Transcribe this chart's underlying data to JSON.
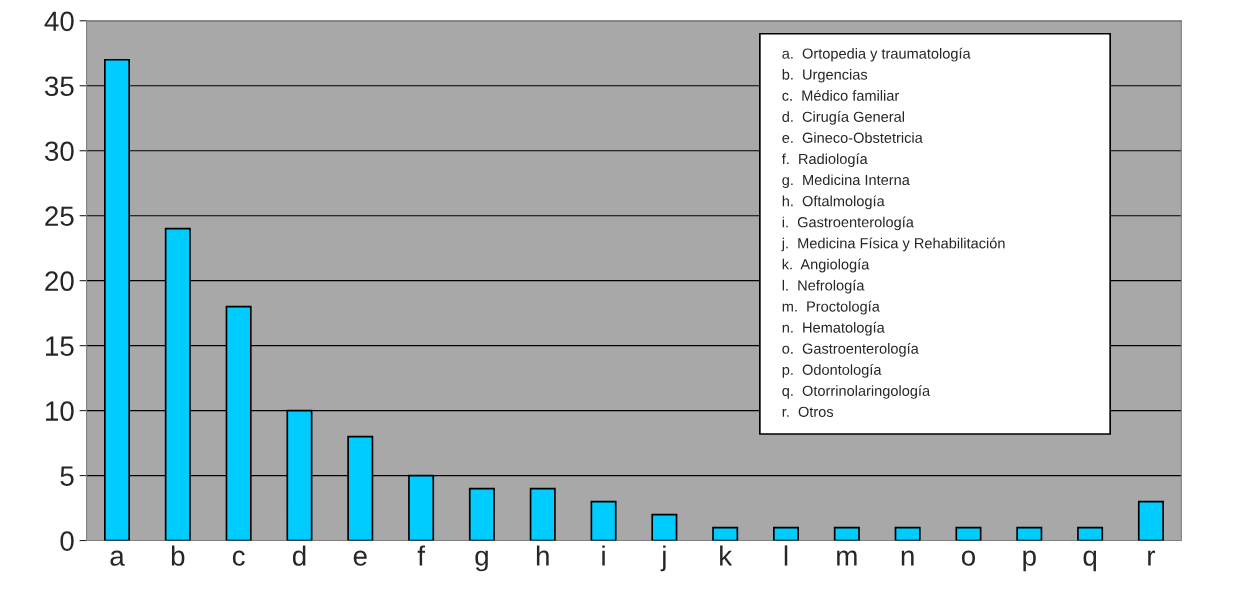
{
  "chart_data": {
    "type": "bar",
    "categories": [
      "a",
      "b",
      "c",
      "d",
      "e",
      "f",
      "g",
      "h",
      "i",
      "j",
      "k",
      "l",
      "m",
      "n",
      "o",
      "p",
      "q",
      "r"
    ],
    "values": [
      37,
      24,
      18,
      10,
      8,
      5,
      4,
      4,
      3,
      2,
      1,
      1,
      1,
      1,
      1,
      1,
      1,
      3
    ],
    "color": "#00ccff",
    "ylim": [
      0,
      40
    ],
    "yticks": [
      0,
      5,
      10,
      15,
      20,
      25,
      30,
      35,
      40
    ],
    "grid": "y",
    "annotations": [
      "a.  Ortopedia y traumatología",
      "b.  Urgencias",
      "c.  Médico familiar",
      "d.  Cirugía General",
      "e.  Gineco-Obstetricia",
      "f.  Radiología",
      "g.  Medicina Interna",
      "h.  Oftalmología",
      "i.  Gastroenterología",
      "j.  Medicina Física y Rehabilitación",
      "k.  Angiología",
      "l.  Nefrología",
      "m.  Proctología",
      "n.  Hematología",
      "o.  Gastroenterología",
      "p.  Odontología",
      "q.  Otorrinolaringología",
      "r.  Otros"
    ]
  }
}
